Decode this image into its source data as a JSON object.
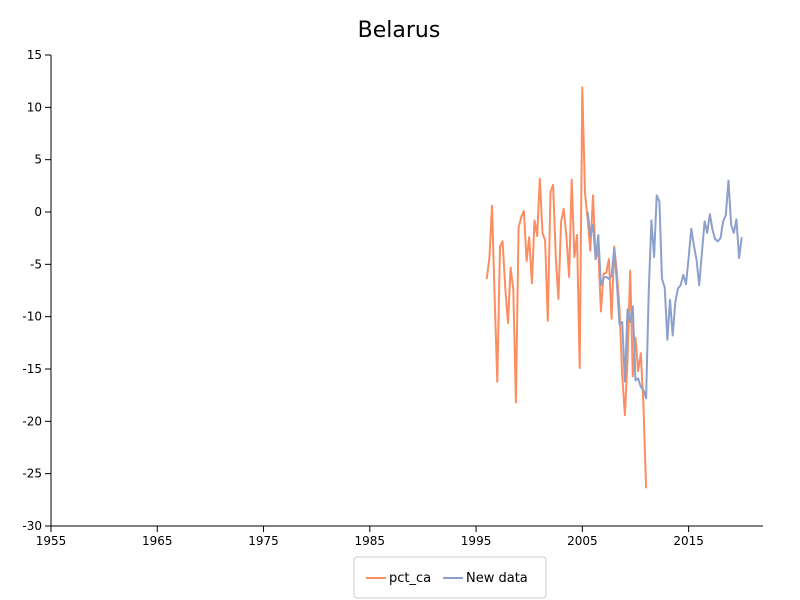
{
  "chart_data": {
    "type": "line",
    "title": "Belarus",
    "xlabel": "",
    "ylabel": "",
    "xlim": [
      1955,
      2022
    ],
    "ylim": [
      -30,
      15
    ],
    "x_ticks": [
      1955,
      1965,
      1975,
      1985,
      1995,
      2005,
      2015
    ],
    "y_ticks": [
      -30,
      -25,
      -20,
      -15,
      -10,
      -5,
      0,
      5,
      10,
      15
    ],
    "grid": false,
    "legend_position": "bottom-center",
    "series": [
      {
        "name": "pct_ca",
        "color": "#fc8d62",
        "points": [
          [
            1996.0,
            -6.4
          ],
          [
            1996.25,
            -4.4
          ],
          [
            1996.5,
            0.6
          ],
          [
            1996.75,
            -8.3
          ],
          [
            1997.0,
            -16.2
          ],
          [
            1997.25,
            -3.3
          ],
          [
            1997.5,
            -2.8
          ],
          [
            1997.75,
            -7.3
          ],
          [
            1998.0,
            -10.6
          ],
          [
            1998.25,
            -5.3
          ],
          [
            1998.5,
            -7.4
          ],
          [
            1998.75,
            -18.2
          ],
          [
            1999.0,
            -1.5
          ],
          [
            1999.25,
            -0.5
          ],
          [
            1999.5,
            0.1
          ],
          [
            1999.75,
            -4.7
          ],
          [
            2000.0,
            -2.4
          ],
          [
            2000.25,
            -6.8
          ],
          [
            2000.5,
            -0.8
          ],
          [
            2000.75,
            -2.3
          ],
          [
            2001.0,
            3.2
          ],
          [
            2001.25,
            -2.0
          ],
          [
            2001.5,
            -2.7
          ],
          [
            2001.75,
            -10.4
          ],
          [
            2002.0,
            1.9
          ],
          [
            2002.25,
            2.6
          ],
          [
            2002.5,
            -4.3
          ],
          [
            2002.75,
            -8.3
          ],
          [
            2003.0,
            -0.9
          ],
          [
            2003.25,
            0.3
          ],
          [
            2003.5,
            -2.3
          ],
          [
            2003.75,
            -6.2
          ],
          [
            2004.0,
            3.1
          ],
          [
            2004.25,
            -4.3
          ],
          [
            2004.5,
            -2.2
          ],
          [
            2004.75,
            -14.9
          ],
          [
            2005.0,
            11.9
          ],
          [
            2005.25,
            1.8
          ],
          [
            2005.5,
            -0.7
          ],
          [
            2005.75,
            -3.7
          ],
          [
            2006.0,
            1.6
          ],
          [
            2006.25,
            -4.5
          ],
          [
            2006.5,
            -3.6
          ],
          [
            2006.75,
            -9.5
          ],
          [
            2007.0,
            -5.9
          ],
          [
            2007.25,
            -5.8
          ],
          [
            2007.5,
            -4.5
          ],
          [
            2007.75,
            -10.2
          ],
          [
            2008.0,
            -3.3
          ],
          [
            2008.25,
            -5.8
          ],
          [
            2008.5,
            -9.3
          ],
          [
            2008.75,
            -15.6
          ],
          [
            2009.0,
            -19.4
          ],
          [
            2009.25,
            -14.2
          ],
          [
            2009.5,
            -5.6
          ],
          [
            2009.75,
            -15.7
          ],
          [
            2010.0,
            -12.0
          ],
          [
            2010.25,
            -15.2
          ],
          [
            2010.5,
            -13.5
          ],
          [
            2010.75,
            -18.4
          ],
          [
            2011.0,
            -26.4
          ]
        ]
      },
      {
        "name": "New data",
        "color": "#8da0cb",
        "points": [
          [
            2005.5,
            0.0
          ],
          [
            2005.75,
            -2.3
          ],
          [
            2006.0,
            -1.2
          ],
          [
            2006.25,
            -4.5
          ],
          [
            2006.5,
            -2.2
          ],
          [
            2006.75,
            -7.0
          ],
          [
            2007.0,
            -6.3
          ],
          [
            2007.25,
            -6.2
          ],
          [
            2007.5,
            -6.4
          ],
          [
            2007.75,
            -6.1
          ],
          [
            2008.0,
            -3.5
          ],
          [
            2008.25,
            -6.8
          ],
          [
            2008.5,
            -10.7
          ],
          [
            2008.75,
            -10.5
          ],
          [
            2009.0,
            -16.2
          ],
          [
            2009.25,
            -9.3
          ],
          [
            2009.5,
            -10.5
          ],
          [
            2009.75,
            -9.0
          ],
          [
            2010.0,
            -16.1
          ],
          [
            2010.25,
            -15.9
          ],
          [
            2010.5,
            -16.7
          ],
          [
            2010.75,
            -17.0
          ],
          [
            2011.0,
            -17.8
          ],
          [
            2011.25,
            -7.4
          ],
          [
            2011.5,
            -0.8
          ],
          [
            2011.75,
            -4.3
          ],
          [
            2012.0,
            1.6
          ],
          [
            2012.25,
            1.0
          ],
          [
            2012.5,
            -6.4
          ],
          [
            2012.75,
            -7.2
          ],
          [
            2013.0,
            -12.2
          ],
          [
            2013.25,
            -8.4
          ],
          [
            2013.5,
            -11.8
          ],
          [
            2013.75,
            -8.6
          ],
          [
            2014.0,
            -7.3
          ],
          [
            2014.25,
            -7.0
          ],
          [
            2014.5,
            -6.0
          ],
          [
            2014.75,
            -6.9
          ],
          [
            2015.0,
            -4.4
          ],
          [
            2015.25,
            -1.6
          ],
          [
            2015.5,
            -3.2
          ],
          [
            2015.75,
            -4.6
          ],
          [
            2016.0,
            -7.0
          ],
          [
            2016.25,
            -3.9
          ],
          [
            2016.5,
            -0.9
          ],
          [
            2016.75,
            -2.0
          ],
          [
            2017.0,
            -0.2
          ],
          [
            2017.25,
            -1.7
          ],
          [
            2017.5,
            -2.6
          ],
          [
            2017.75,
            -2.8
          ],
          [
            2018.0,
            -2.5
          ],
          [
            2018.25,
            -0.9
          ],
          [
            2018.5,
            -0.3
          ],
          [
            2018.75,
            3.0
          ],
          [
            2019.0,
            -1.2
          ],
          [
            2019.25,
            -2.0
          ],
          [
            2019.5,
            -0.7
          ],
          [
            2019.75,
            -4.4
          ],
          [
            2020.0,
            -2.4
          ]
        ]
      }
    ]
  }
}
